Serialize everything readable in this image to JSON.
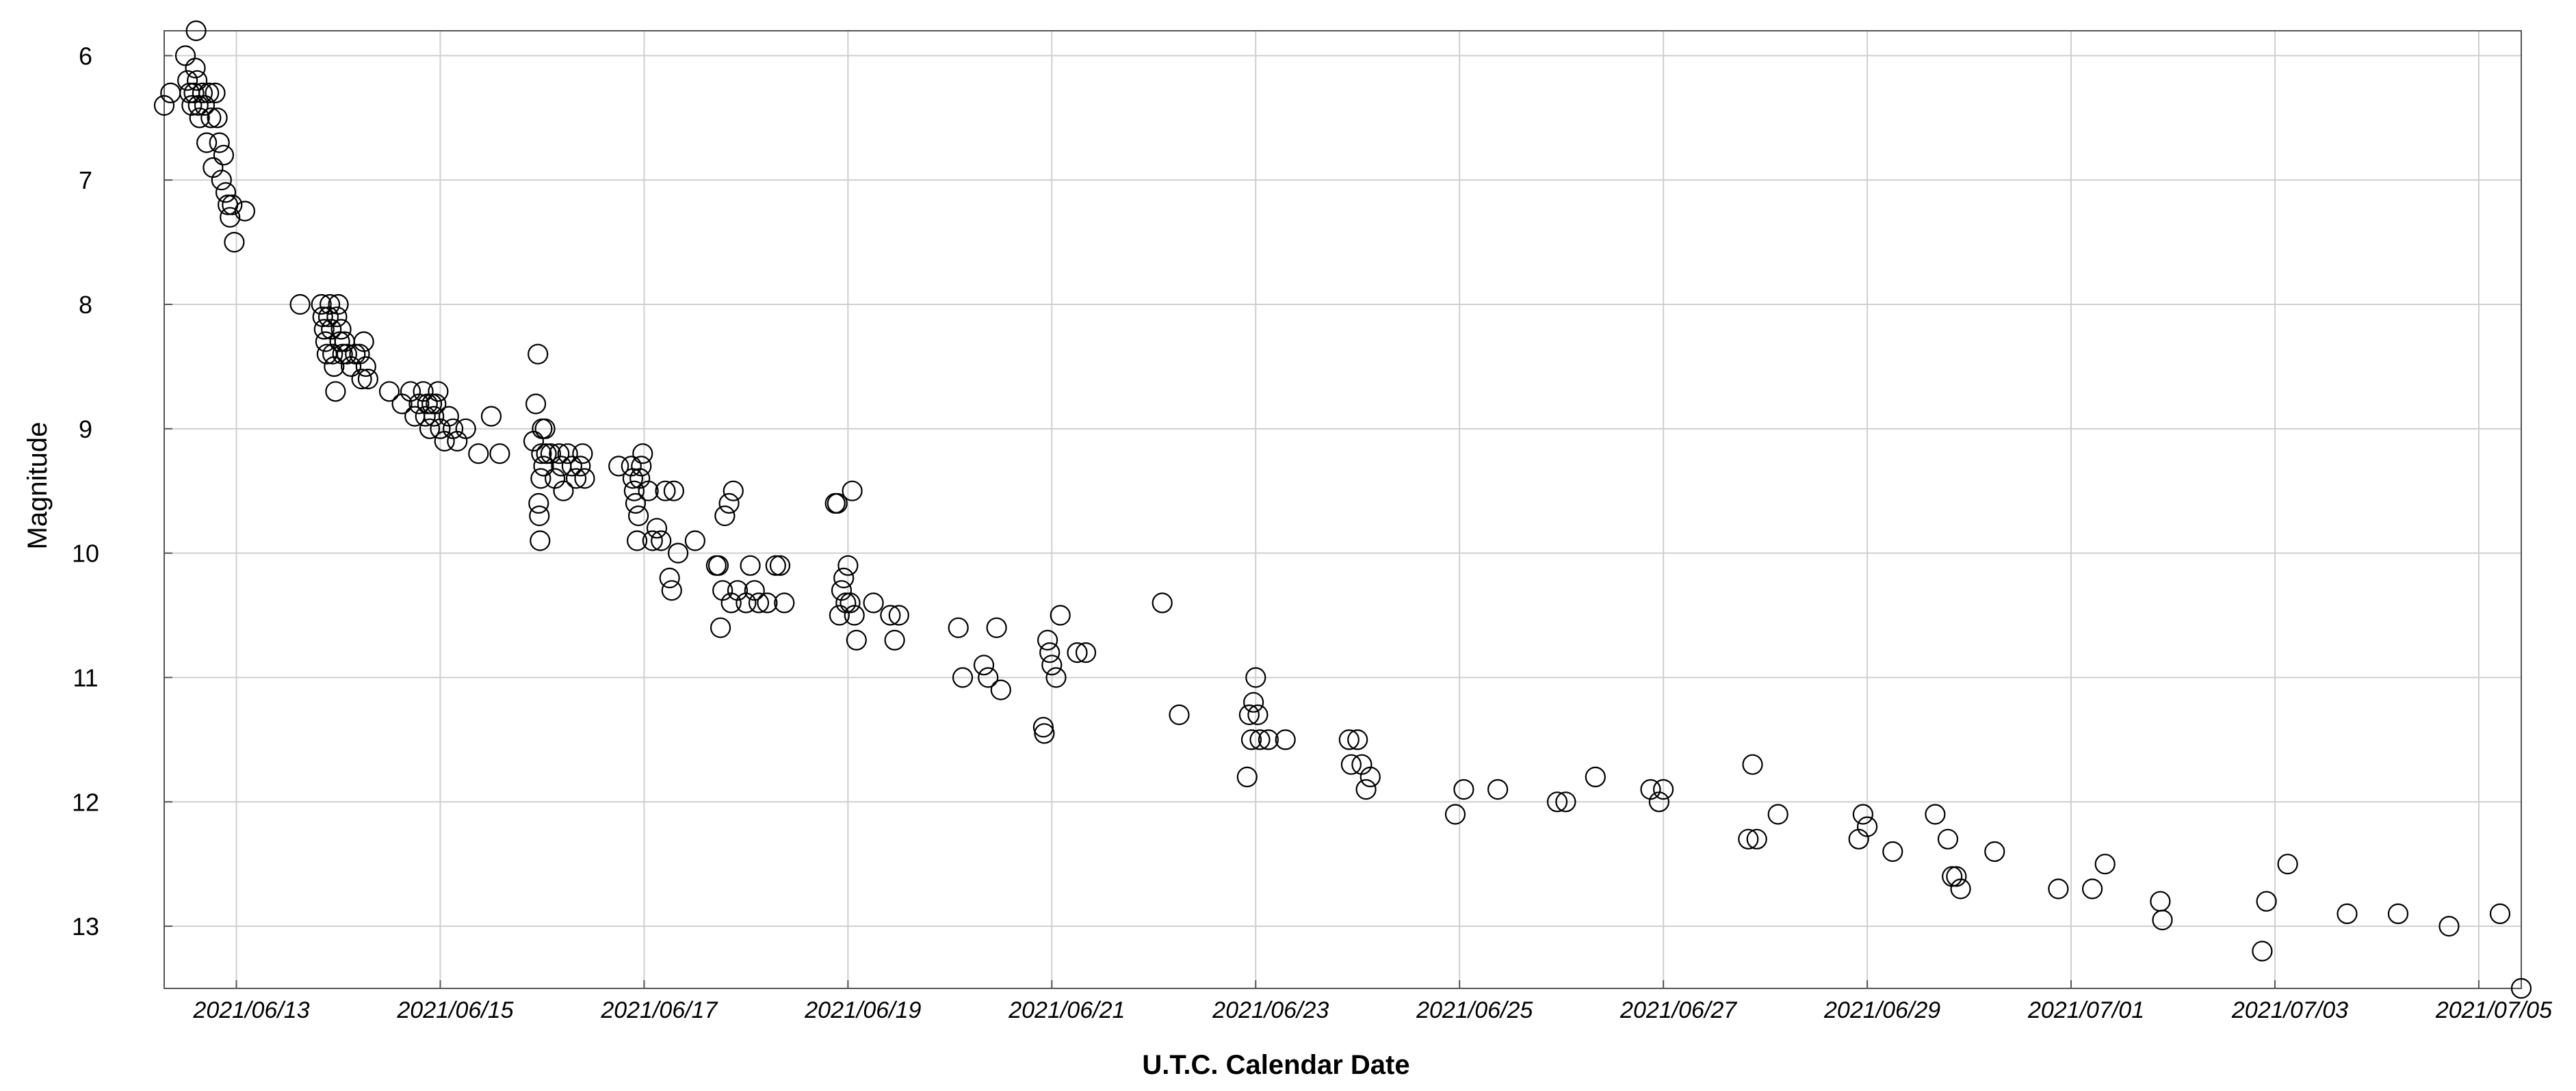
{
  "chart_data": {
    "type": "scatter",
    "title": "",
    "xlabel": "U.T.C. Calendar Date",
    "ylabel": "Magnitude",
    "x_type": "date",
    "xlim": [
      "2021-06-12T07:00",
      "2021-07-05T10:00"
    ],
    "ylim": [
      13.5,
      5.8
    ],
    "y_inverted": true,
    "grid": true,
    "legend": "none",
    "x_ticks": [
      "2021/06/13",
      "2021/06/15",
      "2021/06/17",
      "2021/06/19",
      "2021/06/21",
      "2021/06/23",
      "2021/06/25",
      "2021/06/27",
      "2021/06/29",
      "2021/07/01",
      "2021/07/03",
      "2021/07/05"
    ],
    "y_ticks": [
      "6",
      "7",
      "8",
      "9",
      "10",
      "11",
      "12",
      "13"
    ],
    "marker": "open-circle",
    "colors": {
      "marker": "#000000",
      "grid": "#cfcfcf",
      "frame": "#555555"
    },
    "points": [
      [
        "2021-06-12T07:00",
        6.4
      ],
      [
        "2021-06-12T08:30",
        6.3
      ],
      [
        "2021-06-12T12:00",
        6.0
      ],
      [
        "2021-06-12T12:30",
        6.2
      ],
      [
        "2021-06-12T13:00",
        6.3
      ],
      [
        "2021-06-12T13:30",
        6.4
      ],
      [
        "2021-06-12T14:00",
        6.3
      ],
      [
        "2021-06-12T14:20",
        6.1
      ],
      [
        "2021-06-12T14:30",
        5.8
      ],
      [
        "2021-06-12T14:45",
        6.2
      ],
      [
        "2021-06-12T15:00",
        6.4
      ],
      [
        "2021-06-12T15:20",
        6.5
      ],
      [
        "2021-06-12T16:00",
        6.3
      ],
      [
        "2021-06-12T16:30",
        6.4
      ],
      [
        "2021-06-12T17:00",
        6.7
      ],
      [
        "2021-06-12T17:30",
        6.3
      ],
      [
        "2021-06-12T18:00",
        6.5
      ],
      [
        "2021-06-12T18:30",
        6.9
      ],
      [
        "2021-06-12T19:00",
        6.3
      ],
      [
        "2021-06-12T19:30",
        6.5
      ],
      [
        "2021-06-12T20:00",
        6.7
      ],
      [
        "2021-06-12T20:30",
        7.0
      ],
      [
        "2021-06-12T21:00",
        6.8
      ],
      [
        "2021-06-12T21:30",
        7.1
      ],
      [
        "2021-06-12T22:00",
        7.2
      ],
      [
        "2021-06-12T22:30",
        7.3
      ],
      [
        "2021-06-12T23:00",
        7.2
      ],
      [
        "2021-06-12T23:30",
        7.5
      ],
      [
        "2021-06-13T02:00",
        7.25
      ],
      [
        "2021-06-13T15:00",
        8.0
      ],
      [
        "2021-06-13T20:00",
        8.0
      ],
      [
        "2021-06-13T20:20",
        8.1
      ],
      [
        "2021-06-13T20:40",
        8.2
      ],
      [
        "2021-06-13T21:00",
        8.3
      ],
      [
        "2021-06-13T21:20",
        8.4
      ],
      [
        "2021-06-13T21:40",
        8.1
      ],
      [
        "2021-06-13T22:00",
        8.0
      ],
      [
        "2021-06-13T22:20",
        8.2
      ],
      [
        "2021-06-13T22:40",
        8.4
      ],
      [
        "2021-06-13T23:00",
        8.5
      ],
      [
        "2021-06-13T23:20",
        8.7
      ],
      [
        "2021-06-13T23:40",
        8.1
      ],
      [
        "2021-06-14T00:00",
        8.0
      ],
      [
        "2021-06-14T00:20",
        8.3
      ],
      [
        "2021-06-14T00:40",
        8.2
      ],
      [
        "2021-06-14T01:00",
        8.4
      ],
      [
        "2021-06-14T01:30",
        8.3
      ],
      [
        "2021-06-14T02:00",
        8.4
      ],
      [
        "2021-06-14T03:00",
        8.5
      ],
      [
        "2021-06-14T04:00",
        8.4
      ],
      [
        "2021-06-14T05:00",
        8.4
      ],
      [
        "2021-06-14T05:30",
        8.6
      ],
      [
        "2021-06-14T06:00",
        8.3
      ],
      [
        "2021-06-14T06:30",
        8.5
      ],
      [
        "2021-06-14T07:00",
        8.6
      ],
      [
        "2021-06-14T12:00",
        8.7
      ],
      [
        "2021-06-14T15:00",
        8.8
      ],
      [
        "2021-06-14T17:00",
        8.7
      ],
      [
        "2021-06-14T18:00",
        8.9
      ],
      [
        "2021-06-14T19:00",
        8.8
      ],
      [
        "2021-06-14T20:00",
        8.7
      ],
      [
        "2021-06-14T20:30",
        8.9
      ],
      [
        "2021-06-14T21:00",
        8.8
      ],
      [
        "2021-06-14T21:30",
        9.0
      ],
      [
        "2021-06-14T22:00",
        8.8
      ],
      [
        "2021-06-14T22:30",
        8.9
      ],
      [
        "2021-06-14T23:00",
        8.8
      ],
      [
        "2021-06-14T23:30",
        8.7
      ],
      [
        "2021-06-15T00:00",
        9.0
      ],
      [
        "2021-06-15T01:00",
        9.1
      ],
      [
        "2021-06-15T02:00",
        8.9
      ],
      [
        "2021-06-15T03:00",
        9.0
      ],
      [
        "2021-06-15T04:00",
        9.1
      ],
      [
        "2021-06-15T06:00",
        9.0
      ],
      [
        "2021-06-15T09:00",
        9.2
      ],
      [
        "2021-06-15T12:00",
        8.9
      ],
      [
        "2021-06-15T14:00",
        9.2
      ],
      [
        "2021-06-15T22:00",
        9.1
      ],
      [
        "2021-06-15T22:30",
        8.8
      ],
      [
        "2021-06-15T23:00",
        8.4
      ],
      [
        "2021-06-15T23:10",
        9.6
      ],
      [
        "2021-06-15T23:20",
        9.7
      ],
      [
        "2021-06-15T23:30",
        9.9
      ],
      [
        "2021-06-15T23:40",
        9.4
      ],
      [
        "2021-06-15T23:50",
        9.2
      ],
      [
        "2021-06-16T00:00",
        9.0
      ],
      [
        "2021-06-16T00:20",
        9.3
      ],
      [
        "2021-06-16T00:40",
        9.0
      ],
      [
        "2021-06-16T01:00",
        9.2
      ],
      [
        "2021-06-16T02:00",
        9.2
      ],
      [
        "2021-06-16T03:00",
        9.4
      ],
      [
        "2021-06-16T04:00",
        9.2
      ],
      [
        "2021-06-16T04:30",
        9.3
      ],
      [
        "2021-06-16T05:00",
        9.5
      ],
      [
        "2021-06-16T06:00",
        9.2
      ],
      [
        "2021-06-16T07:00",
        9.3
      ],
      [
        "2021-06-16T08:00",
        9.4
      ],
      [
        "2021-06-16T09:00",
        9.3
      ],
      [
        "2021-06-16T09:30",
        9.2
      ],
      [
        "2021-06-16T10:00",
        9.4
      ],
      [
        "2021-06-16T18:00",
        9.3
      ],
      [
        "2021-06-16T21:00",
        9.3
      ],
      [
        "2021-06-16T21:20",
        9.4
      ],
      [
        "2021-06-16T21:40",
        9.5
      ],
      [
        "2021-06-16T22:00",
        9.6
      ],
      [
        "2021-06-16T22:20",
        9.9
      ],
      [
        "2021-06-16T22:40",
        9.7
      ],
      [
        "2021-06-16T23:00",
        9.4
      ],
      [
        "2021-06-16T23:20",
        9.3
      ],
      [
        "2021-06-16T23:40",
        9.2
      ],
      [
        "2021-06-17T01:00",
        9.5
      ],
      [
        "2021-06-17T02:00",
        9.9
      ],
      [
        "2021-06-17T03:00",
        9.8
      ],
      [
        "2021-06-17T04:00",
        9.9
      ],
      [
        "2021-06-17T05:00",
        9.5
      ],
      [
        "2021-06-17T06:00",
        10.2
      ],
      [
        "2021-06-17T06:30",
        10.3
      ],
      [
        "2021-06-17T07:00",
        9.5
      ],
      [
        "2021-06-17T08:00",
        10.0
      ],
      [
        "2021-06-17T12:00",
        9.9
      ],
      [
        "2021-06-17T17:00",
        10.1
      ],
      [
        "2021-06-17T17:30",
        10.1
      ],
      [
        "2021-06-17T18:00",
        10.6
      ],
      [
        "2021-06-17T18:30",
        10.3
      ],
      [
        "2021-06-17T19:00",
        9.7
      ],
      [
        "2021-06-17T20:00",
        9.6
      ],
      [
        "2021-06-17T20:30",
        10.4
      ],
      [
        "2021-06-17T21:00",
        9.5
      ],
      [
        "2021-06-17T22:00",
        10.3
      ],
      [
        "2021-06-18T00:00",
        10.4
      ],
      [
        "2021-06-18T01:00",
        10.1
      ],
      [
        "2021-06-18T02:00",
        10.3
      ],
      [
        "2021-06-18T03:00",
        10.4
      ],
      [
        "2021-06-18T05:00",
        10.4
      ],
      [
        "2021-06-18T07:00",
        10.1
      ],
      [
        "2021-06-18T08:00",
        10.1
      ],
      [
        "2021-06-18T09:00",
        10.4
      ],
      [
        "2021-06-18T21:00",
        9.6
      ],
      [
        "2021-06-18T21:30",
        9.6
      ],
      [
        "2021-06-18T22:00",
        10.5
      ],
      [
        "2021-06-18T22:30",
        10.3
      ],
      [
        "2021-06-18T23:00",
        10.2
      ],
      [
        "2021-06-18T23:30",
        10.4
      ],
      [
        "2021-06-19T00:00",
        10.1
      ],
      [
        "2021-06-19T00:30",
        10.4
      ],
      [
        "2021-06-19T01:00",
        9.5
      ],
      [
        "2021-06-19T01:30",
        10.5
      ],
      [
        "2021-06-19T02:00",
        10.7
      ],
      [
        "2021-06-19T06:00",
        10.4
      ],
      [
        "2021-06-19T10:00",
        10.5
      ],
      [
        "2021-06-19T11:00",
        10.7
      ],
      [
        "2021-06-19T12:00",
        10.5
      ],
      [
        "2021-06-20T02:00",
        10.6
      ],
      [
        "2021-06-20T03:00",
        11.0
      ],
      [
        "2021-06-20T08:00",
        10.9
      ],
      [
        "2021-06-20T09:00",
        11.0
      ],
      [
        "2021-06-20T11:00",
        10.6
      ],
      [
        "2021-06-20T12:00",
        11.1
      ],
      [
        "2021-06-20T22:00",
        11.4
      ],
      [
        "2021-06-20T22:15",
        11.45
      ],
      [
        "2021-06-20T23:00",
        10.7
      ],
      [
        "2021-06-20T23:30",
        10.8
      ],
      [
        "2021-06-21T00:00",
        10.9
      ],
      [
        "2021-06-21T01:00",
        11.0
      ],
      [
        "2021-06-21T02:00",
        10.5
      ],
      [
        "2021-06-21T06:00",
        10.8
      ],
      [
        "2021-06-21T08:00",
        10.8
      ],
      [
        "2021-06-22T02:00",
        10.4
      ],
      [
        "2021-06-22T06:00",
        11.3
      ],
      [
        "2021-06-22T22:00",
        11.8
      ],
      [
        "2021-06-22T22:30",
        11.3
      ],
      [
        "2021-06-22T23:00",
        11.5
      ],
      [
        "2021-06-22T23:30",
        11.2
      ],
      [
        "2021-06-23T00:00",
        11.0
      ],
      [
        "2021-06-23T00:30",
        11.3
      ],
      [
        "2021-06-23T01:00",
        11.5
      ],
      [
        "2021-06-23T03:00",
        11.5
      ],
      [
        "2021-06-23T07:00",
        11.5
      ],
      [
        "2021-06-23T22:00",
        11.5
      ],
      [
        "2021-06-23T22:30",
        11.7
      ],
      [
        "2021-06-24T00:00",
        11.5
      ],
      [
        "2021-06-24T01:00",
        11.7
      ],
      [
        "2021-06-24T02:00",
        11.9
      ],
      [
        "2021-06-24T03:00",
        11.8
      ],
      [
        "2021-06-24T23:00",
        12.1
      ],
      [
        "2021-06-25T01:00",
        11.9
      ],
      [
        "2021-06-25T09:00",
        11.9
      ],
      [
        "2021-06-25T23:00",
        12.0
      ],
      [
        "2021-06-26T01:00",
        12.0
      ],
      [
        "2021-06-26T08:00",
        11.8
      ],
      [
        "2021-06-26T21:00",
        11.9
      ],
      [
        "2021-06-26T23:00",
        12.0
      ],
      [
        "2021-06-27T00:00",
        11.9
      ],
      [
        "2021-06-27T20:00",
        12.3
      ],
      [
        "2021-06-27T21:00",
        11.7
      ],
      [
        "2021-06-27T22:00",
        12.3
      ],
      [
        "2021-06-28T03:00",
        12.1
      ],
      [
        "2021-06-28T22:00",
        12.3
      ],
      [
        "2021-06-28T23:00",
        12.1
      ],
      [
        "2021-06-29T00:00",
        12.2
      ],
      [
        "2021-06-29T06:00",
        12.4
      ],
      [
        "2021-06-29T16:00",
        12.1
      ],
      [
        "2021-06-29T19:00",
        12.3
      ],
      [
        "2021-06-29T20:00",
        12.6
      ],
      [
        "2021-06-29T21:00",
        12.6
      ],
      [
        "2021-06-29T22:00",
        12.7
      ],
      [
        "2021-06-30T06:00",
        12.4
      ],
      [
        "2021-06-30T21:00",
        12.7
      ],
      [
        "2021-07-01T05:00",
        12.7
      ],
      [
        "2021-07-01T08:00",
        12.5
      ],
      [
        "2021-07-01T21:00",
        12.8
      ],
      [
        "2021-07-01T21:30",
        12.95
      ],
      [
        "2021-07-02T21:00",
        13.2
      ],
      [
        "2021-07-02T22:00",
        12.8
      ],
      [
        "2021-07-03T03:00",
        12.5
      ],
      [
        "2021-07-03T17:00",
        12.9
      ],
      [
        "2021-07-04T05:00",
        12.9
      ],
      [
        "2021-07-04T17:00",
        13.0
      ],
      [
        "2021-07-05T05:00",
        12.9
      ],
      [
        "2021-07-05T10:00",
        13.5
      ]
    ]
  }
}
